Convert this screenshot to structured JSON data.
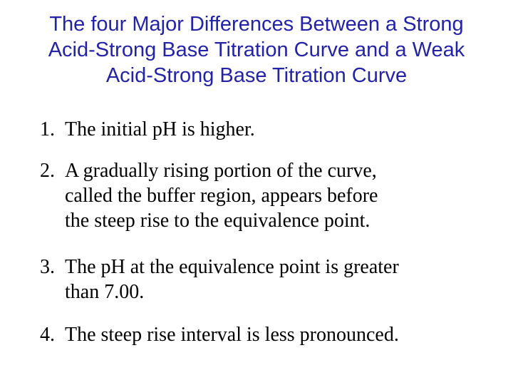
{
  "title": {
    "lines": [
      "The four Major Differences Between a Strong",
      "Acid-Strong Base Titration Curve and a Weak",
      "Acid-Strong Base Titration Curve"
    ]
  },
  "items": [
    {
      "number": "1.",
      "lines": [
        "The initial pH is higher."
      ]
    },
    {
      "number": "2.",
      "lines": [
        "A gradually rising portion of the curve,",
        "called the buffer region, appears before",
        "the steep rise to the equivalence point."
      ]
    },
    {
      "number": "3.",
      "lines": [
        "The pH at the equivalence point is greater",
        "than 7.00."
      ]
    },
    {
      "number": "4.",
      "lines": [
        "The steep rise interval is less pronounced."
      ]
    }
  ]
}
